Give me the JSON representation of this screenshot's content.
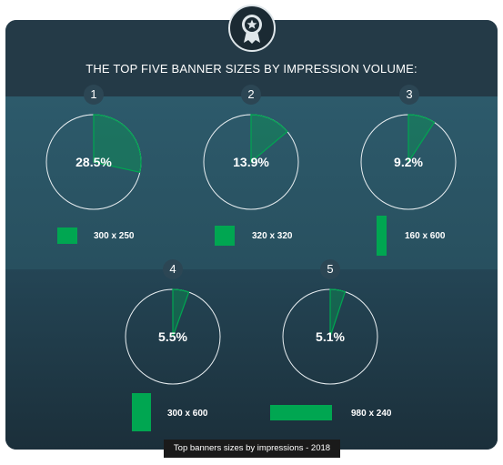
{
  "title": "THE TOP FIVE BANNER SIZES BY IMPRESSION VOLUME:",
  "caption": "Top banners sizes by impressions - 2018",
  "colors": {
    "accent": "#00a651",
    "background": "#2c5567",
    "text": "#ffffff"
  },
  "badge_icon": "award-star-icon",
  "chart_data": {
    "type": "pie",
    "title": "THE TOP FIVE BANNER SIZES BY IMPRESSION VOLUME:",
    "unit": "%",
    "items": [
      {
        "rank": "1",
        "label": "300 x 250",
        "value": 28.5,
        "display": "28.5%"
      },
      {
        "rank": "2",
        "label": "320 x 320",
        "value": 13.9,
        "display": "13.9%"
      },
      {
        "rank": "3",
        "label": "160 x 600",
        "value": 9.2,
        "display": "9.2%"
      },
      {
        "rank": "4",
        "label": "300 x 600",
        "value": 5.5,
        "display": "5.5%"
      },
      {
        "rank": "5",
        "label": "980 x 240",
        "value": 5.1,
        "display": "5.1%"
      }
    ]
  }
}
